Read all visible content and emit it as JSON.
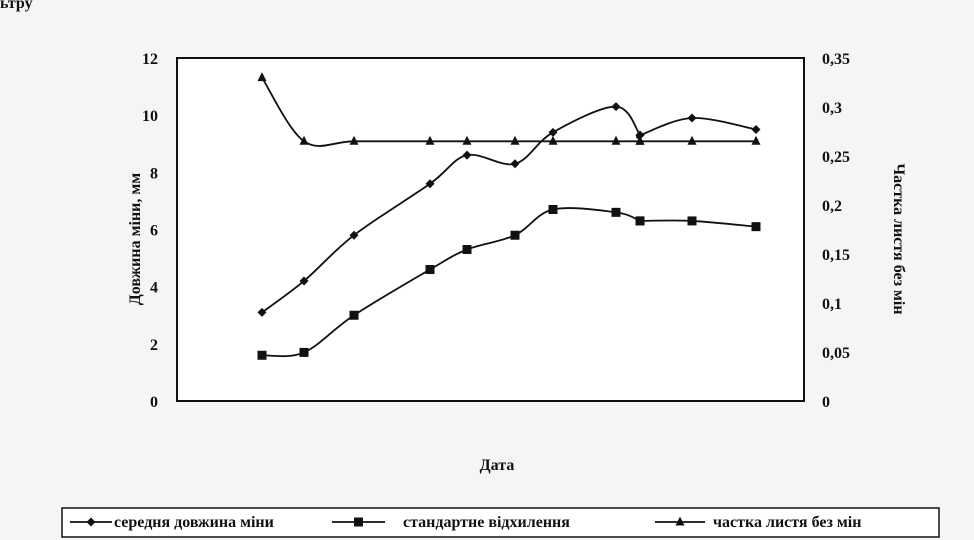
{
  "top_text": "ьтру",
  "chart_data": {
    "type": "line",
    "xlabel": "Дата",
    "ylabel": "Довжина міни, мм",
    "y2label": "Частка листя без мін",
    "ylim": [
      0,
      12
    ],
    "y2lim": [
      0,
      0.35
    ],
    "yticks": [
      "0",
      "2",
      "4",
      "6",
      "8",
      "10",
      "12"
    ],
    "y2ticks": [
      "0",
      "0,05",
      "0,1",
      "0,15",
      "0,2",
      "0,25",
      "0,3",
      "0,35"
    ],
    "x": [
      1,
      2,
      3,
      4,
      5,
      6,
      7,
      8,
      9,
      10,
      11,
      12,
      13
    ],
    "x_positions_index": true,
    "series": [
      {
        "name": "середня довжина міни",
        "axis": "left",
        "marker": "diamond",
        "x": [
          1,
          2,
          3,
          4,
          5,
          6,
          7,
          8,
          8.5,
          9,
          11,
          12
        ],
        "values": [
          3.1,
          4.2,
          5.8,
          7.6,
          8.6,
          8.3,
          9.4,
          10.3,
          9.3,
          9.3,
          9.9,
          9.5
        ]
      },
      {
        "name": "стандартне відхилення",
        "axis": "left",
        "marker": "square",
        "x": [
          1,
          2,
          3,
          4,
          5,
          6,
          7,
          8,
          8.5,
          9,
          11,
          12
        ],
        "values": [
          1.6,
          1.7,
          3.0,
          4.6,
          5.3,
          5.8,
          6.7,
          6.6,
          6.3,
          6.3,
          6.3,
          6.1
        ]
      },
      {
        "name": "частка листя без мін",
        "axis": "right",
        "marker": "triangle",
        "x": [
          1,
          2,
          3,
          4,
          5,
          6,
          7,
          8,
          8.5,
          9,
          11,
          12
        ],
        "values": [
          0.33,
          0.265,
          0.265,
          0.265,
          0.265,
          0.265,
          0.265,
          0.265,
          0.265,
          0.265,
          0.265,
          0.265
        ]
      }
    ],
    "legend_position": "bottom",
    "grid": false
  }
}
